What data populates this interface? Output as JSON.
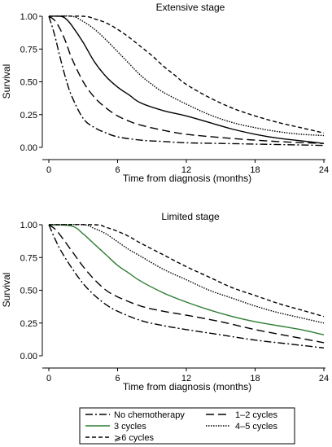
{
  "chart_data": [
    {
      "type": "line",
      "title": "Extensive stage",
      "xlabel": "Time from diagnosis (months)",
      "ylabel": "Survival",
      "xlim": [
        0,
        24
      ],
      "ylim": [
        0,
        1
      ],
      "xticks": [
        "0",
        "6",
        "12",
        "18",
        "24"
      ],
      "yticks": [
        "0.00",
        "0.25",
        "0.50",
        "0.75",
        "1.00"
      ],
      "grid": false,
      "series": [
        {
          "key": "none",
          "x": [
            0,
            0.5,
            1,
            1.5,
            2,
            3,
            4,
            5,
            6,
            8,
            10,
            12,
            15,
            18,
            21,
            24
          ],
          "y": [
            1.0,
            0.86,
            0.68,
            0.52,
            0.39,
            0.22,
            0.15,
            0.11,
            0.08,
            0.055,
            0.045,
            0.035,
            0.03,
            0.025,
            0.02,
            0.015
          ]
        },
        {
          "key": "c12",
          "x": [
            0,
            0.5,
            1,
            1.5,
            2,
            3,
            4,
            5,
            6,
            7,
            8,
            10,
            12,
            15,
            18,
            21,
            24
          ],
          "y": [
            1.0,
            0.97,
            0.9,
            0.8,
            0.68,
            0.5,
            0.38,
            0.3,
            0.24,
            0.2,
            0.17,
            0.13,
            0.1,
            0.075,
            0.055,
            0.04,
            0.03
          ]
        },
        {
          "key": "c3",
          "x": [
            0,
            1,
            1.5,
            2,
            3,
            4,
            5,
            6,
            7,
            8,
            10,
            12,
            14,
            16,
            18,
            20,
            22,
            24
          ],
          "y": [
            1.0,
            1.0,
            0.98,
            0.93,
            0.8,
            0.65,
            0.54,
            0.46,
            0.4,
            0.34,
            0.28,
            0.24,
            0.19,
            0.14,
            0.1,
            0.07,
            0.05,
            0.03
          ]
        },
        {
          "key": "c45",
          "x": [
            0,
            2,
            3,
            4,
            5,
            6,
            7,
            8,
            9,
            10,
            12,
            14,
            16,
            18,
            20,
            22,
            24
          ],
          "y": [
            1.0,
            1.0,
            0.96,
            0.9,
            0.82,
            0.73,
            0.64,
            0.55,
            0.48,
            0.42,
            0.33,
            0.25,
            0.19,
            0.15,
            0.12,
            0.1,
            0.09
          ]
        },
        {
          "key": "c6",
          "x": [
            0,
            3,
            4,
            5,
            6,
            7,
            8,
            9,
            10,
            11,
            12,
            14,
            16,
            18,
            20,
            22,
            24
          ],
          "y": [
            1.0,
            1.0,
            0.98,
            0.95,
            0.9,
            0.84,
            0.77,
            0.7,
            0.62,
            0.55,
            0.48,
            0.38,
            0.3,
            0.24,
            0.19,
            0.15,
            0.11
          ]
        }
      ]
    },
    {
      "type": "line",
      "title": "Limited stage",
      "xlabel": "Time from diagnosis (months)",
      "ylabel": "Survival",
      "xlim": [
        0,
        24
      ],
      "ylim": [
        0,
        1
      ],
      "xticks": [
        "0",
        "6",
        "12",
        "18",
        "24"
      ],
      "yticks": [
        "0.00",
        "0.25",
        "0.50",
        "0.75",
        "1.00"
      ],
      "grid": false,
      "series": [
        {
          "key": "none",
          "x": [
            0,
            0.5,
            1,
            2,
            3,
            4,
            5,
            6,
            8,
            10,
            12,
            15,
            18,
            21,
            24
          ],
          "y": [
            1.0,
            0.9,
            0.81,
            0.67,
            0.55,
            0.46,
            0.39,
            0.34,
            0.27,
            0.23,
            0.2,
            0.16,
            0.12,
            0.09,
            0.06
          ]
        },
        {
          "key": "c12",
          "x": [
            0,
            0.5,
            1,
            2,
            3,
            4,
            5,
            6,
            8,
            10,
            12,
            15,
            18,
            21,
            24
          ],
          "y": [
            1.0,
            0.97,
            0.92,
            0.8,
            0.68,
            0.58,
            0.5,
            0.45,
            0.38,
            0.34,
            0.31,
            0.26,
            0.2,
            0.15,
            0.1
          ]
        },
        {
          "key": "c3",
          "x": [
            0,
            2,
            3,
            4,
            5,
            6,
            7,
            8,
            10,
            12,
            14,
            16,
            18,
            20,
            22,
            24
          ],
          "y": [
            1.0,
            0.99,
            0.93,
            0.85,
            0.77,
            0.69,
            0.63,
            0.57,
            0.48,
            0.41,
            0.35,
            0.3,
            0.26,
            0.23,
            0.2,
            0.16
          ]
        },
        {
          "key": "c45",
          "x": [
            0,
            3,
            4,
            5,
            6,
            7,
            8,
            10,
            12,
            14,
            16,
            18,
            20,
            22,
            24
          ],
          "y": [
            1.0,
            1.0,
            0.97,
            0.93,
            0.87,
            0.81,
            0.76,
            0.66,
            0.58,
            0.5,
            0.44,
            0.38,
            0.33,
            0.29,
            0.25
          ]
        },
        {
          "key": "c6",
          "x": [
            0,
            4,
            5,
            6,
            7,
            8,
            10,
            12,
            14,
            16,
            18,
            20,
            22,
            24
          ],
          "y": [
            1.0,
            1.0,
            0.98,
            0.95,
            0.91,
            0.86,
            0.77,
            0.68,
            0.6,
            0.52,
            0.46,
            0.4,
            0.35,
            0.3
          ]
        }
      ]
    }
  ],
  "legend": {
    "placement": "bottom",
    "entries": [
      {
        "key": "none",
        "label": "No chemotherapy"
      },
      {
        "key": "c12",
        "label": "1–2 cycles"
      },
      {
        "key": "c3",
        "label": "3 cycles"
      },
      {
        "key": "c45",
        "label": "4–5 cycles"
      },
      {
        "key": "c6",
        "label": "⩾6 cycles"
      }
    ]
  },
  "series_styles": {
    "none": {
      "color": "#000000",
      "dash": "9,3,2,3"
    },
    "c12": {
      "color": "#000000",
      "dash": "10,5"
    },
    "c3": {
      "color": "#2e7d32",
      "dash": ""
    },
    "c45": {
      "color": "#000000",
      "dash": "1.5,1.5"
    },
    "c6": {
      "color": "#000000",
      "dash": "5,3"
    }
  },
  "panel1_emphasis": {
    "c3": {
      "color": "#000000"
    }
  }
}
